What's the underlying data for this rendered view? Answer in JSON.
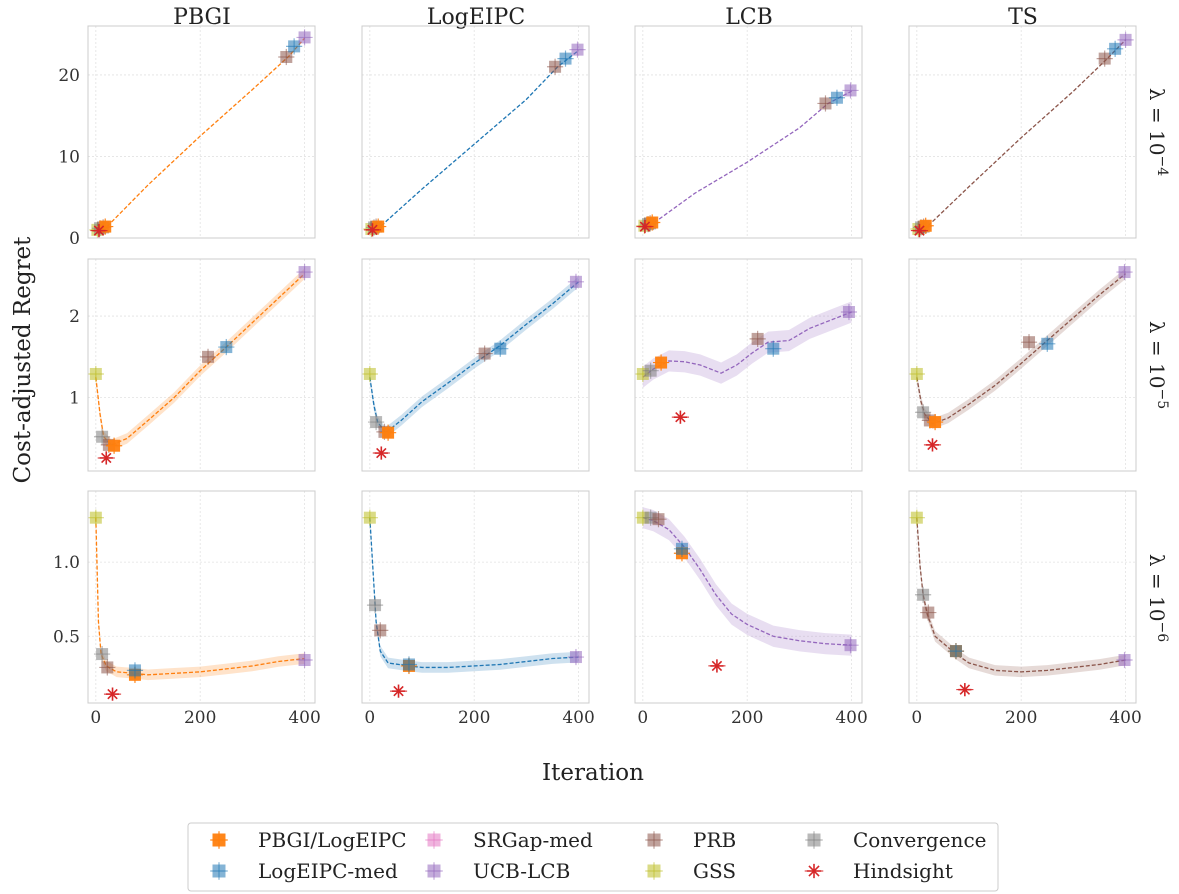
{
  "chart_data": {
    "type": "line",
    "ylabel": "Cost-adjusted Regret",
    "xlabel": "Iteration",
    "columns": [
      "PBGI",
      "LogEIPC",
      "LCB",
      "TS"
    ],
    "rows": [
      {
        "label": "λ = 10",
        "exponent": "−4",
        "ylim": [
          0,
          26
        ],
        "yticks": [
          0,
          10,
          20
        ]
      },
      {
        "label": "λ = 10",
        "exponent": "−5",
        "ylim": [
          0.1,
          2.7
        ],
        "yticks": [
          1,
          2
        ]
      },
      {
        "label": "λ = 10",
        "exponent": "−6",
        "ylim": [
          0.05,
          1.48
        ],
        "yticks": [
          0.5,
          1.0
        ]
      }
    ],
    "xlim": [
      -15,
      420
    ],
    "xticks": [
      0,
      200,
      400
    ],
    "grid": true,
    "legend_position": "bottom-center",
    "legend": [
      {
        "name": "PBGI/LogEIPC",
        "color": "#ff7f0e",
        "marker": "square"
      },
      {
        "name": "LogEIPC-med",
        "color": "#1f77b4",
        "marker": "square"
      },
      {
        "name": "SRGap-med",
        "color": "#e377c2",
        "marker": "square"
      },
      {
        "name": "UCB-LCB",
        "color": "#9467bd",
        "marker": "square"
      },
      {
        "name": "PRB",
        "color": "#8c564b",
        "marker": "square"
      },
      {
        "name": "GSS",
        "color": "#bcbd22",
        "marker": "square"
      },
      {
        "name": "Convergence",
        "color": "#7f7f7f",
        "marker": "square"
      },
      {
        "name": "Hindsight",
        "color": "#d62728",
        "marker": "star"
      }
    ],
    "panels": [
      {
        "row": 0,
        "col": 0,
        "color": "#ff7f0e",
        "curve": [
          [
            0,
            1.1
          ],
          [
            20,
            1.3
          ],
          [
            100,
            6.5
          ],
          [
            200,
            12.5
          ],
          [
            300,
            18.2
          ],
          [
            370,
            22.3
          ],
          [
            400,
            24.5
          ]
        ],
        "markers": [
          {
            "name": "GSS",
            "x": 3,
            "y": 1.0
          },
          {
            "name": "Convergence",
            "x": 8,
            "y": 1.2
          },
          {
            "name": "PRB",
            "x": 14,
            "y": 1.3
          },
          {
            "name": "PBGI/LogEIPC",
            "x": 18,
            "y": 1.4
          },
          {
            "name": "Hindsight",
            "x": 6,
            "y": 0.9
          },
          {
            "name": "PRB",
            "x": 365,
            "y": 22.2
          },
          {
            "name": "LogEIPC-med",
            "x": 380,
            "y": 23.5
          },
          {
            "name": "UCB-LCB",
            "x": 400,
            "y": 24.6
          }
        ]
      },
      {
        "row": 0,
        "col": 1,
        "color": "#1f77b4",
        "curve": [
          [
            0,
            1.1
          ],
          [
            20,
            1.4
          ],
          [
            100,
            6.0
          ],
          [
            200,
            11.5
          ],
          [
            300,
            17.0
          ],
          [
            360,
            21.0
          ],
          [
            400,
            23.0
          ]
        ],
        "markers": [
          {
            "name": "GSS",
            "x": 3,
            "y": 1.1
          },
          {
            "name": "Convergence",
            "x": 8,
            "y": 1.3
          },
          {
            "name": "PRB",
            "x": 12,
            "y": 1.4
          },
          {
            "name": "PBGI/LogEIPC",
            "x": 16,
            "y": 1.4
          },
          {
            "name": "Hindsight",
            "x": 5,
            "y": 1.0
          },
          {
            "name": "PRB",
            "x": 355,
            "y": 21.0
          },
          {
            "name": "LogEIPC-med",
            "x": 375,
            "y": 22.0
          },
          {
            "name": "UCB-LCB",
            "x": 398,
            "y": 23.1
          }
        ]
      },
      {
        "row": 0,
        "col": 2,
        "color": "#9467bd",
        "curve": [
          [
            0,
            1.5
          ],
          [
            20,
            1.8
          ],
          [
            100,
            5.5
          ],
          [
            200,
            9.3
          ],
          [
            300,
            13.5
          ],
          [
            355,
            16.5
          ],
          [
            400,
            18.0
          ]
        ],
        "markers": [
          {
            "name": "GSS",
            "x": 3,
            "y": 1.5
          },
          {
            "name": "Convergence",
            "x": 10,
            "y": 1.7
          },
          {
            "name": "PRB",
            "x": 14,
            "y": 1.8
          },
          {
            "name": "PBGI/LogEIPC",
            "x": 18,
            "y": 1.9
          },
          {
            "name": "Hindsight",
            "x": 4,
            "y": 1.4
          },
          {
            "name": "PRB",
            "x": 350,
            "y": 16.5
          },
          {
            "name": "LogEIPC-med",
            "x": 372,
            "y": 17.2
          },
          {
            "name": "UCB-LCB",
            "x": 398,
            "y": 18.1
          }
        ]
      },
      {
        "row": 0,
        "col": 3,
        "color": "#8c564b",
        "curve": [
          [
            0,
            1.1
          ],
          [
            20,
            1.4
          ],
          [
            100,
            6.3
          ],
          [
            200,
            12.3
          ],
          [
            300,
            18.0
          ],
          [
            365,
            22.0
          ],
          [
            400,
            24.3
          ]
        ],
        "markers": [
          {
            "name": "GSS",
            "x": 3,
            "y": 1.1
          },
          {
            "name": "Convergence",
            "x": 8,
            "y": 1.3
          },
          {
            "name": "PRB",
            "x": 13,
            "y": 1.4
          },
          {
            "name": "PBGI/LogEIPC",
            "x": 17,
            "y": 1.5
          },
          {
            "name": "Hindsight",
            "x": 5,
            "y": 0.9
          },
          {
            "name": "PRB",
            "x": 360,
            "y": 22.0
          },
          {
            "name": "LogEIPC-med",
            "x": 380,
            "y": 23.2
          },
          {
            "name": "UCB-LCB",
            "x": 400,
            "y": 24.3
          }
        ]
      },
      {
        "row": 1,
        "col": 0,
        "color": "#ff7f0e",
        "curve": [
          [
            0,
            1.25
          ],
          [
            8,
            0.8
          ],
          [
            15,
            0.52
          ],
          [
            30,
            0.42
          ],
          [
            60,
            0.5
          ],
          [
            100,
            0.72
          ],
          [
            150,
            1.0
          ],
          [
            200,
            1.33
          ],
          [
            250,
            1.62
          ],
          [
            300,
            1.92
          ],
          [
            350,
            2.22
          ],
          [
            400,
            2.52
          ]
        ],
        "markers": [
          {
            "name": "GSS",
            "x": 0,
            "y": 1.29
          },
          {
            "name": "Convergence",
            "x": 12,
            "y": 0.52
          },
          {
            "name": "PRB",
            "x": 25,
            "y": 0.42
          },
          {
            "name": "PBGI/LogEIPC",
            "x": 35,
            "y": 0.41
          },
          {
            "name": "Hindsight",
            "x": 20,
            "y": 0.26
          },
          {
            "name": "PRB",
            "x": 215,
            "y": 1.5
          },
          {
            "name": "LogEIPC-med",
            "x": 250,
            "y": 1.62
          },
          {
            "name": "UCB-LCB",
            "x": 400,
            "y": 2.54
          }
        ]
      },
      {
        "row": 1,
        "col": 1,
        "color": "#1f77b4",
        "curve": [
          [
            0,
            1.25
          ],
          [
            8,
            0.9
          ],
          [
            15,
            0.7
          ],
          [
            30,
            0.57
          ],
          [
            60,
            0.72
          ],
          [
            100,
            0.95
          ],
          [
            150,
            1.18
          ],
          [
            200,
            1.42
          ],
          [
            250,
            1.64
          ],
          [
            300,
            1.9
          ],
          [
            350,
            2.15
          ],
          [
            400,
            2.42
          ]
        ],
        "markers": [
          {
            "name": "GSS",
            "x": 0,
            "y": 1.29
          },
          {
            "name": "Convergence",
            "x": 12,
            "y": 0.7
          },
          {
            "name": "PRB",
            "x": 28,
            "y": 0.58
          },
          {
            "name": "PBGI/LogEIPC",
            "x": 35,
            "y": 0.57
          },
          {
            "name": "Hindsight",
            "x": 22,
            "y": 0.32
          },
          {
            "name": "PRB",
            "x": 220,
            "y": 1.54
          },
          {
            "name": "LogEIPC-med",
            "x": 250,
            "y": 1.6
          },
          {
            "name": "UCB-LCB",
            "x": 395,
            "y": 2.42
          }
        ]
      },
      {
        "row": 1,
        "col": 2,
        "color": "#9467bd",
        "curve": [
          [
            0,
            1.25
          ],
          [
            20,
            1.35
          ],
          [
            50,
            1.45
          ],
          [
            80,
            1.44
          ],
          [
            110,
            1.4
          ],
          [
            150,
            1.3
          ],
          [
            180,
            1.4
          ],
          [
            210,
            1.55
          ],
          [
            240,
            1.68
          ],
          [
            280,
            1.7
          ],
          [
            320,
            1.85
          ],
          [
            360,
            1.95
          ],
          [
            400,
            2.05
          ]
        ],
        "markers": [
          {
            "name": "GSS",
            "x": 0,
            "y": 1.29
          },
          {
            "name": "Convergence",
            "x": 15,
            "y": 1.33
          },
          {
            "name": "PBGI/LogEIPC",
            "x": 35,
            "y": 1.43
          },
          {
            "name": "Hindsight",
            "x": 72,
            "y": 0.76
          },
          {
            "name": "PRB",
            "x": 220,
            "y": 1.72
          },
          {
            "name": "LogEIPC-med",
            "x": 250,
            "y": 1.6
          },
          {
            "name": "UCB-LCB",
            "x": 395,
            "y": 2.05
          }
        ]
      },
      {
        "row": 1,
        "col": 3,
        "color": "#8c564b",
        "curve": [
          [
            0,
            1.25
          ],
          [
            8,
            0.95
          ],
          [
            15,
            0.8
          ],
          [
            30,
            0.68
          ],
          [
            60,
            0.75
          ],
          [
            100,
            0.92
          ],
          [
            150,
            1.15
          ],
          [
            200,
            1.42
          ],
          [
            250,
            1.7
          ],
          [
            300,
            1.98
          ],
          [
            350,
            2.26
          ],
          [
            400,
            2.52
          ]
        ],
        "markers": [
          {
            "name": "GSS",
            "x": 0,
            "y": 1.29
          },
          {
            "name": "Convergence",
            "x": 12,
            "y": 0.82
          },
          {
            "name": "PRB",
            "x": 25,
            "y": 0.72
          },
          {
            "name": "PBGI/LogEIPC",
            "x": 35,
            "y": 0.7
          },
          {
            "name": "Hindsight",
            "x": 30,
            "y": 0.42
          },
          {
            "name": "PRB",
            "x": 215,
            "y": 1.68
          },
          {
            "name": "LogEIPC-med",
            "x": 250,
            "y": 1.66
          },
          {
            "name": "UCB-LCB",
            "x": 398,
            "y": 2.54
          }
        ]
      },
      {
        "row": 2,
        "col": 0,
        "color": "#ff7f0e",
        "curve": [
          [
            0,
            1.3
          ],
          [
            5,
            0.6
          ],
          [
            10,
            0.38
          ],
          [
            20,
            0.3
          ],
          [
            40,
            0.26
          ],
          [
            75,
            0.25
          ],
          [
            100,
            0.24
          ],
          [
            150,
            0.25
          ],
          [
            200,
            0.26
          ],
          [
            250,
            0.28
          ],
          [
            300,
            0.3
          ],
          [
            350,
            0.33
          ],
          [
            400,
            0.35
          ]
        ],
        "markers": [
          {
            "name": "GSS",
            "x": 0,
            "y": 1.3
          },
          {
            "name": "Convergence",
            "x": 12,
            "y": 0.38
          },
          {
            "name": "PRB",
            "x": 22,
            "y": 0.29
          },
          {
            "name": "PBGI/LogEIPC",
            "x": 75,
            "y": 0.24
          },
          {
            "name": "LogEIPC-med",
            "x": 75,
            "y": 0.27
          },
          {
            "name": "Hindsight",
            "x": 32,
            "y": 0.11
          },
          {
            "name": "UCB-LCB",
            "x": 400,
            "y": 0.34
          }
        ]
      },
      {
        "row": 2,
        "col": 1,
        "color": "#1f77b4",
        "curve": [
          [
            0,
            1.3
          ],
          [
            6,
            0.95
          ],
          [
            12,
            0.6
          ],
          [
            20,
            0.4
          ],
          [
            35,
            0.32
          ],
          [
            75,
            0.3
          ],
          [
            100,
            0.29
          ],
          [
            150,
            0.29
          ],
          [
            200,
            0.3
          ],
          [
            250,
            0.31
          ],
          [
            300,
            0.33
          ],
          [
            350,
            0.35
          ],
          [
            400,
            0.36
          ]
        ],
        "markers": [
          {
            "name": "GSS",
            "x": 0,
            "y": 1.3
          },
          {
            "name": "Convergence",
            "x": 10,
            "y": 0.71
          },
          {
            "name": "PRB",
            "x": 20,
            "y": 0.54
          },
          {
            "name": "PBGI/LogEIPC",
            "x": 75,
            "y": 0.3
          },
          {
            "name": "LogEIPC-med",
            "x": 75,
            "y": 0.31
          },
          {
            "name": "Hindsight",
            "x": 55,
            "y": 0.13
          },
          {
            "name": "UCB-LCB",
            "x": 395,
            "y": 0.36
          }
        ]
      },
      {
        "row": 2,
        "col": 2,
        "color": "#9467bd",
        "curve": [
          [
            0,
            1.3
          ],
          [
            20,
            1.28
          ],
          [
            50,
            1.22
          ],
          [
            80,
            1.1
          ],
          [
            110,
            0.95
          ],
          [
            140,
            0.78
          ],
          [
            170,
            0.65
          ],
          [
            200,
            0.58
          ],
          [
            250,
            0.5
          ],
          [
            300,
            0.47
          ],
          [
            350,
            0.45
          ],
          [
            400,
            0.44
          ]
        ],
        "markers": [
          {
            "name": "GSS",
            "x": 0,
            "y": 1.3
          },
          {
            "name": "Convergence",
            "x": 15,
            "y": 1.3
          },
          {
            "name": "PRB",
            "x": 30,
            "y": 1.29
          },
          {
            "name": "PBGI/LogEIPC",
            "x": 75,
            "y": 1.06
          },
          {
            "name": "LogEIPC-med",
            "x": 75,
            "y": 1.09
          },
          {
            "name": "Hindsight",
            "x": 142,
            "y": 0.3
          },
          {
            "name": "UCB-LCB",
            "x": 398,
            "y": 0.44
          }
        ]
      },
      {
        "row": 2,
        "col": 3,
        "color": "#8c564b",
        "curve": [
          [
            0,
            1.3
          ],
          [
            6,
            0.98
          ],
          [
            12,
            0.78
          ],
          [
            20,
            0.65
          ],
          [
            35,
            0.5
          ],
          [
            75,
            0.38
          ],
          [
            100,
            0.32
          ],
          [
            150,
            0.27
          ],
          [
            200,
            0.26
          ],
          [
            250,
            0.27
          ],
          [
            300,
            0.29
          ],
          [
            350,
            0.31
          ],
          [
            400,
            0.34
          ]
        ],
        "markers": [
          {
            "name": "GSS",
            "x": 0,
            "y": 1.3
          },
          {
            "name": "Convergence",
            "x": 12,
            "y": 0.78
          },
          {
            "name": "PRB",
            "x": 22,
            "y": 0.66
          },
          {
            "name": "PBGI/LogEIPC",
            "x": 75,
            "y": 0.4
          },
          {
            "name": "LogEIPC-med",
            "x": 75,
            "y": 0.4
          },
          {
            "name": "Hindsight",
            "x": 92,
            "y": 0.14
          },
          {
            "name": "UCB-LCB",
            "x": 398,
            "y": 0.34
          }
        ]
      }
    ]
  }
}
